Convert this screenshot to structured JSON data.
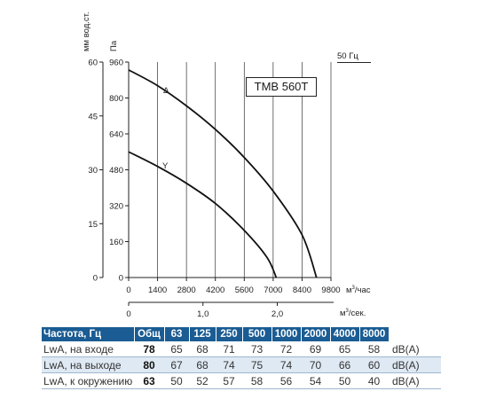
{
  "chart_data": {
    "type": "line",
    "model": "TMB 560T",
    "frequency_label": "50 Гц",
    "y_left_label": "мм вод.ст.",
    "y_left_ticks": [
      0,
      15,
      30,
      45,
      60
    ],
    "y_label": "Па",
    "y_ticks": [
      0,
      160,
      320,
      480,
      640,
      800,
      960
    ],
    "ylim": [
      0,
      960
    ],
    "x_label": "м³/час",
    "x_ticks": [
      0,
      1400,
      2800,
      4200,
      5600,
      7000,
      8400,
      9800
    ],
    "xlim": [
      0,
      9800
    ],
    "x2_label": "м³/сек.",
    "x2_ticks": [
      "0",
      "1,0",
      "2,0"
    ],
    "x2_tick_values": [
      0,
      1.0,
      2.0
    ],
    "grid": "vertical",
    "series": [
      {
        "name": "Δ",
        "x": [
          0,
          1400,
          2800,
          4200,
          5600,
          7000,
          8400,
          9100
        ],
        "y": [
          925,
          855,
          765,
          660,
          535,
          385,
          190,
          0
        ]
      },
      {
        "name": "Y",
        "x": [
          0,
          1400,
          2800,
          4200,
          5600,
          6700,
          7150
        ],
        "y": [
          560,
          495,
          420,
          330,
          210,
          90,
          0
        ]
      }
    ]
  },
  "table": {
    "header_label": "Частота, Гц",
    "columns": [
      "Общ",
      "63",
      "125",
      "250",
      "500",
      "1000",
      "2000",
      "4000",
      "8000"
    ],
    "unit": "dB(A)",
    "rows": [
      {
        "label": "LwA, на входе",
        "values": [
          "78",
          "65",
          "68",
          "71",
          "73",
          "72",
          "69",
          "65",
          "58"
        ]
      },
      {
        "label": "LwA, на выходе",
        "values": [
          "80",
          "67",
          "68",
          "74",
          "75",
          "74",
          "70",
          "66",
          "60"
        ]
      },
      {
        "label": "LwA, к окружению",
        "values": [
          "63",
          "50",
          "52",
          "57",
          "58",
          "56",
          "54",
          "50",
          "40"
        ]
      }
    ]
  }
}
